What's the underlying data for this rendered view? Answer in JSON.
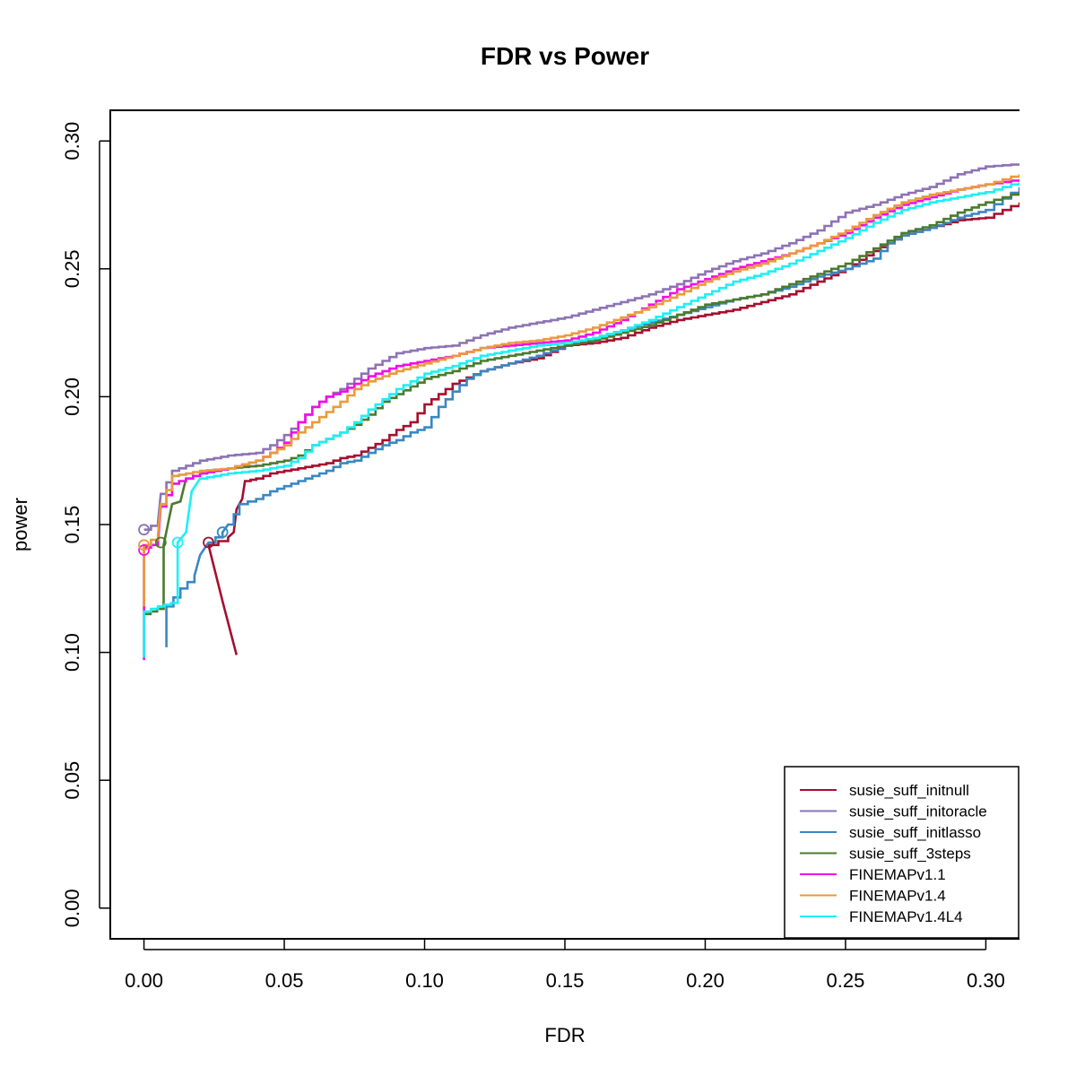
{
  "chart_data": {
    "type": "line",
    "title": "FDR vs Power",
    "xlabel": "FDR",
    "ylabel": "power",
    "xlim": [
      -0.012,
      0.312
    ],
    "ylim": [
      -0.012,
      0.312
    ],
    "xticks": [
      "0.00",
      "0.05",
      "0.10",
      "0.15",
      "0.20",
      "0.25",
      "0.30"
    ],
    "yticks": [
      "0.00",
      "0.05",
      "0.10",
      "0.15",
      "0.20",
      "0.25",
      "0.30"
    ],
    "grid": false,
    "legend_position": "bottom-right",
    "series": [
      {
        "name": "susie_suff_initnull",
        "color": "#A50F2E",
        "marker": [
          0.023,
          0.143
        ],
        "points": [
          [
            0.033,
            0.099
          ],
          [
            0.028,
            0.12
          ],
          [
            0.023,
            0.142
          ],
          [
            0.03,
            0.145
          ],
          [
            0.032,
            0.147
          ],
          [
            0.033,
            0.156
          ],
          [
            0.035,
            0.16
          ],
          [
            0.036,
            0.167
          ],
          [
            0.04,
            0.168
          ],
          [
            0.045,
            0.17
          ],
          [
            0.055,
            0.172
          ],
          [
            0.06,
            0.173
          ],
          [
            0.065,
            0.174
          ],
          [
            0.07,
            0.176
          ],
          [
            0.075,
            0.177
          ],
          [
            0.08,
            0.18
          ],
          [
            0.085,
            0.183
          ],
          [
            0.09,
            0.187
          ],
          [
            0.095,
            0.19
          ],
          [
            0.1,
            0.197
          ],
          [
            0.11,
            0.205
          ],
          [
            0.12,
            0.21
          ],
          [
            0.13,
            0.213
          ],
          [
            0.14,
            0.215
          ],
          [
            0.15,
            0.22
          ],
          [
            0.16,
            0.221
          ],
          [
            0.17,
            0.223
          ],
          [
            0.18,
            0.227
          ],
          [
            0.19,
            0.23
          ],
          [
            0.2,
            0.232
          ],
          [
            0.21,
            0.234
          ],
          [
            0.22,
            0.237
          ],
          [
            0.23,
            0.24
          ],
          [
            0.24,
            0.245
          ],
          [
            0.25,
            0.25
          ],
          [
            0.26,
            0.257
          ],
          [
            0.27,
            0.263
          ],
          [
            0.28,
            0.266
          ],
          [
            0.29,
            0.269
          ],
          [
            0.3,
            0.27
          ],
          [
            0.312,
            0.276
          ]
        ]
      },
      {
        "name": "susie_suff_initoracle",
        "color": "#8D73B4",
        "marker": [
          0.0,
          0.148
        ],
        "points": [
          [
            0.0,
            0.148
          ],
          [
            0.005,
            0.151
          ],
          [
            0.006,
            0.162
          ],
          [
            0.01,
            0.171
          ],
          [
            0.015,
            0.173
          ],
          [
            0.02,
            0.175
          ],
          [
            0.03,
            0.177
          ],
          [
            0.04,
            0.178
          ],
          [
            0.045,
            0.181
          ],
          [
            0.05,
            0.185
          ],
          [
            0.055,
            0.19
          ],
          [
            0.06,
            0.196
          ],
          [
            0.065,
            0.2
          ],
          [
            0.07,
            0.203
          ],
          [
            0.075,
            0.207
          ],
          [
            0.08,
            0.211
          ],
          [
            0.085,
            0.214
          ],
          [
            0.09,
            0.217
          ],
          [
            0.1,
            0.219
          ],
          [
            0.11,
            0.22
          ],
          [
            0.12,
            0.224
          ],
          [
            0.13,
            0.227
          ],
          [
            0.14,
            0.229
          ],
          [
            0.15,
            0.231
          ],
          [
            0.16,
            0.234
          ],
          [
            0.17,
            0.237
          ],
          [
            0.18,
            0.24
          ],
          [
            0.19,
            0.244
          ],
          [
            0.2,
            0.249
          ],
          [
            0.21,
            0.253
          ],
          [
            0.22,
            0.256
          ],
          [
            0.23,
            0.26
          ],
          [
            0.24,
            0.265
          ],
          [
            0.25,
            0.272
          ],
          [
            0.26,
            0.275
          ],
          [
            0.27,
            0.279
          ],
          [
            0.28,
            0.282
          ],
          [
            0.29,
            0.287
          ],
          [
            0.3,
            0.29
          ],
          [
            0.312,
            0.291
          ]
        ]
      },
      {
        "name": "susie_suff_initlasso",
        "color": "#3A87C3",
        "marker": [
          0.028,
          0.147
        ],
        "points": [
          [
            0.008,
            0.102
          ],
          [
            0.008,
            0.118
          ],
          [
            0.013,
            0.125
          ],
          [
            0.018,
            0.13
          ],
          [
            0.02,
            0.138
          ],
          [
            0.023,
            0.143
          ],
          [
            0.028,
            0.147
          ],
          [
            0.03,
            0.15
          ],
          [
            0.034,
            0.158
          ],
          [
            0.04,
            0.16
          ],
          [
            0.045,
            0.163
          ],
          [
            0.05,
            0.165
          ],
          [
            0.055,
            0.167
          ],
          [
            0.06,
            0.169
          ],
          [
            0.065,
            0.171
          ],
          [
            0.07,
            0.174
          ],
          [
            0.075,
            0.175
          ],
          [
            0.08,
            0.178
          ],
          [
            0.085,
            0.181
          ],
          [
            0.09,
            0.183
          ],
          [
            0.095,
            0.186
          ],
          [
            0.1,
            0.188
          ],
          [
            0.105,
            0.196
          ],
          [
            0.11,
            0.202
          ],
          [
            0.115,
            0.207
          ],
          [
            0.12,
            0.21
          ],
          [
            0.13,
            0.213
          ],
          [
            0.14,
            0.216
          ],
          [
            0.15,
            0.22
          ],
          [
            0.16,
            0.223
          ],
          [
            0.17,
            0.226
          ],
          [
            0.18,
            0.229
          ],
          [
            0.19,
            0.232
          ],
          [
            0.2,
            0.235
          ],
          [
            0.21,
            0.238
          ],
          [
            0.22,
            0.24
          ],
          [
            0.23,
            0.243
          ],
          [
            0.24,
            0.247
          ],
          [
            0.25,
            0.25
          ],
          [
            0.26,
            0.254
          ],
          [
            0.265,
            0.26
          ],
          [
            0.27,
            0.263
          ],
          [
            0.28,
            0.266
          ],
          [
            0.29,
            0.27
          ],
          [
            0.3,
            0.273
          ],
          [
            0.312,
            0.282
          ]
        ]
      },
      {
        "name": "susie_suff_3steps",
        "color": "#4B7A2E",
        "marker": [
          0.006,
          0.143
        ],
        "points": [
          [
            0.0,
            0.115
          ],
          [
            0.007,
            0.118
          ],
          [
            0.007,
            0.142
          ],
          [
            0.01,
            0.158
          ],
          [
            0.013,
            0.159
          ],
          [
            0.015,
            0.168
          ],
          [
            0.02,
            0.17
          ],
          [
            0.03,
            0.172
          ],
          [
            0.04,
            0.173
          ],
          [
            0.05,
            0.175
          ],
          [
            0.055,
            0.177
          ],
          [
            0.06,
            0.181
          ],
          [
            0.07,
            0.186
          ],
          [
            0.075,
            0.189
          ],
          [
            0.08,
            0.193
          ],
          [
            0.085,
            0.198
          ],
          [
            0.09,
            0.201
          ],
          [
            0.095,
            0.204
          ],
          [
            0.1,
            0.207
          ],
          [
            0.11,
            0.21
          ],
          [
            0.12,
            0.214
          ],
          [
            0.13,
            0.216
          ],
          [
            0.14,
            0.218
          ],
          [
            0.15,
            0.22
          ],
          [
            0.16,
            0.222
          ],
          [
            0.17,
            0.225
          ],
          [
            0.18,
            0.228
          ],
          [
            0.19,
            0.232
          ],
          [
            0.2,
            0.236
          ],
          [
            0.21,
            0.238
          ],
          [
            0.22,
            0.24
          ],
          [
            0.23,
            0.244
          ],
          [
            0.24,
            0.248
          ],
          [
            0.25,
            0.252
          ],
          [
            0.26,
            0.258
          ],
          [
            0.27,
            0.264
          ],
          [
            0.28,
            0.267
          ],
          [
            0.29,
            0.272
          ],
          [
            0.3,
            0.276
          ],
          [
            0.312,
            0.28
          ]
        ]
      },
      {
        "name": "FINEMAPv1.1",
        "color": "#F20EE8",
        "marker": [
          0.0,
          0.14
        ],
        "points": [
          [
            0.0,
            0.097
          ],
          [
            0.0,
            0.141
          ],
          [
            0.005,
            0.143
          ],
          [
            0.006,
            0.157
          ],
          [
            0.01,
            0.166
          ],
          [
            0.015,
            0.168
          ],
          [
            0.02,
            0.17
          ],
          [
            0.03,
            0.172
          ],
          [
            0.04,
            0.175
          ],
          [
            0.045,
            0.178
          ],
          [
            0.05,
            0.182
          ],
          [
            0.055,
            0.19
          ],
          [
            0.06,
            0.196
          ],
          [
            0.065,
            0.2
          ],
          [
            0.07,
            0.202
          ],
          [
            0.075,
            0.205
          ],
          [
            0.08,
            0.208
          ],
          [
            0.085,
            0.21
          ],
          [
            0.09,
            0.212
          ],
          [
            0.1,
            0.214
          ],
          [
            0.11,
            0.216
          ],
          [
            0.12,
            0.219
          ],
          [
            0.13,
            0.22
          ],
          [
            0.14,
            0.221
          ],
          [
            0.15,
            0.222
          ],
          [
            0.16,
            0.225
          ],
          [
            0.17,
            0.23
          ],
          [
            0.18,
            0.236
          ],
          [
            0.19,
            0.242
          ],
          [
            0.2,
            0.246
          ],
          [
            0.21,
            0.25
          ],
          [
            0.22,
            0.253
          ],
          [
            0.23,
            0.256
          ],
          [
            0.24,
            0.26
          ],
          [
            0.25,
            0.264
          ],
          [
            0.26,
            0.27
          ],
          [
            0.27,
            0.275
          ],
          [
            0.28,
            0.278
          ],
          [
            0.29,
            0.281
          ],
          [
            0.3,
            0.283
          ],
          [
            0.312,
            0.285
          ]
        ]
      },
      {
        "name": "FINEMAPv1.4",
        "color": "#E89B3A",
        "marker": [
          0.0,
          0.142
        ],
        "points": [
          [
            0.0,
            0.118
          ],
          [
            0.0,
            0.142
          ],
          [
            0.005,
            0.146
          ],
          [
            0.006,
            0.158
          ],
          [
            0.01,
            0.169
          ],
          [
            0.015,
            0.17
          ],
          [
            0.02,
            0.171
          ],
          [
            0.03,
            0.172
          ],
          [
            0.04,
            0.175
          ],
          [
            0.045,
            0.178
          ],
          [
            0.05,
            0.181
          ],
          [
            0.055,
            0.186
          ],
          [
            0.06,
            0.19
          ],
          [
            0.065,
            0.194
          ],
          [
            0.07,
            0.198
          ],
          [
            0.075,
            0.203
          ],
          [
            0.08,
            0.206
          ],
          [
            0.09,
            0.21
          ],
          [
            0.1,
            0.213
          ],
          [
            0.11,
            0.216
          ],
          [
            0.12,
            0.219
          ],
          [
            0.13,
            0.221
          ],
          [
            0.14,
            0.222
          ],
          [
            0.15,
            0.224
          ],
          [
            0.16,
            0.227
          ],
          [
            0.17,
            0.231
          ],
          [
            0.18,
            0.235
          ],
          [
            0.19,
            0.24
          ],
          [
            0.2,
            0.245
          ],
          [
            0.21,
            0.249
          ],
          [
            0.22,
            0.252
          ],
          [
            0.23,
            0.256
          ],
          [
            0.24,
            0.26
          ],
          [
            0.25,
            0.265
          ],
          [
            0.26,
            0.271
          ],
          [
            0.27,
            0.276
          ],
          [
            0.28,
            0.279
          ],
          [
            0.29,
            0.281
          ],
          [
            0.3,
            0.283
          ],
          [
            0.312,
            0.287
          ]
        ]
      },
      {
        "name": "FINEMAPv1.4L4",
        "color": "#1CF0F5",
        "marker": [
          0.012,
          0.143
        ],
        "points": [
          [
            0.0,
            0.098
          ],
          [
            0.0,
            0.116
          ],
          [
            0.005,
            0.118
          ],
          [
            0.012,
            0.12
          ],
          [
            0.012,
            0.143
          ],
          [
            0.015,
            0.147
          ],
          [
            0.017,
            0.163
          ],
          [
            0.02,
            0.168
          ],
          [
            0.03,
            0.17
          ],
          [
            0.04,
            0.171
          ],
          [
            0.05,
            0.173
          ],
          [
            0.055,
            0.176
          ],
          [
            0.06,
            0.181
          ],
          [
            0.07,
            0.186
          ],
          [
            0.075,
            0.19
          ],
          [
            0.08,
            0.195
          ],
          [
            0.085,
            0.199
          ],
          [
            0.09,
            0.203
          ],
          [
            0.095,
            0.206
          ],
          [
            0.1,
            0.209
          ],
          [
            0.11,
            0.212
          ],
          [
            0.12,
            0.216
          ],
          [
            0.13,
            0.218
          ],
          [
            0.14,
            0.22
          ],
          [
            0.15,
            0.221
          ],
          [
            0.16,
            0.223
          ],
          [
            0.17,
            0.226
          ],
          [
            0.18,
            0.23
          ],
          [
            0.19,
            0.235
          ],
          [
            0.2,
            0.24
          ],
          [
            0.21,
            0.245
          ],
          [
            0.22,
            0.248
          ],
          [
            0.23,
            0.252
          ],
          [
            0.24,
            0.257
          ],
          [
            0.25,
            0.262
          ],
          [
            0.26,
            0.268
          ],
          [
            0.27,
            0.273
          ],
          [
            0.28,
            0.276
          ],
          [
            0.29,
            0.278
          ],
          [
            0.3,
            0.28
          ],
          [
            0.312,
            0.284
          ]
        ]
      }
    ]
  }
}
